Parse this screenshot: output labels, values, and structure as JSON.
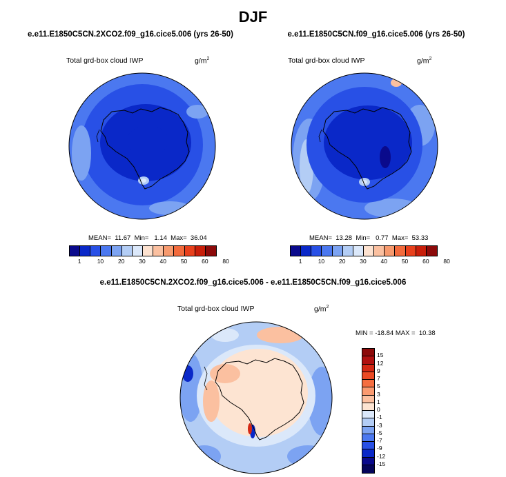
{
  "title": "DJF",
  "panel_left": {
    "case": "e.e11.E1850C5CN.2XCO2.f09_g16.cice5.006 (yrs 26-50)",
    "variable": "Total grd-box cloud IWP",
    "units": "g/m",
    "units_exp": "2",
    "stats": "MEAN=  11.67  Min=   1.14  Max=  36.04"
  },
  "panel_right": {
    "case": "e.e11.E1850C5CN.f09_g16.cice5.006 (yrs 26-50)",
    "variable": "Total grd-box cloud IWP",
    "units": "g/m",
    "units_exp": "2",
    "stats": "MEAN=  13.28  Min=   0.77  Max=  53.33"
  },
  "panel_diff": {
    "case": "e.e11.E1850C5CN.2XCO2.f09_g16.cice5.006 - e.e11.E1850C5CN.f09_g16.cice5.006",
    "variable": "Total grd-box cloud IWP",
    "units": "g/m",
    "units_exp": "2",
    "stats": "MIN = -18.84 MAX =  10.38"
  },
  "colorbar_main": {
    "labels": [
      "1",
      "10",
      "20",
      "30",
      "40",
      "50",
      "60",
      "80"
    ],
    "colors": [
      "#0a0a8c",
      "#0a28c8",
      "#2850e6",
      "#4b78f0",
      "#7ca3f2",
      "#b3cdf5",
      "#dbe8fa",
      "#fde2d0",
      "#fbc0a0",
      "#f79a6e",
      "#f26a3c",
      "#e8401c",
      "#c81e0a",
      "#8c0a0a"
    ]
  },
  "colorbar_diff": {
    "labels": [
      "15",
      "12",
      "9",
      "7",
      "5",
      "3",
      "1",
      "0",
      "-1",
      "-3",
      "-5",
      "-7",
      "-9",
      "-12",
      "-15"
    ],
    "colors": [
      "#8c0a0a",
      "#b01010",
      "#d42814",
      "#ea4a24",
      "#f56e40",
      "#fa9a70",
      "#fcc0a0",
      "#fde4d2",
      "#dbe8fa",
      "#b3cdf5",
      "#7ca3f2",
      "#4b78f0",
      "#2850e6",
      "#0a28c8",
      "#0a0a8c",
      "#05055a"
    ]
  }
}
